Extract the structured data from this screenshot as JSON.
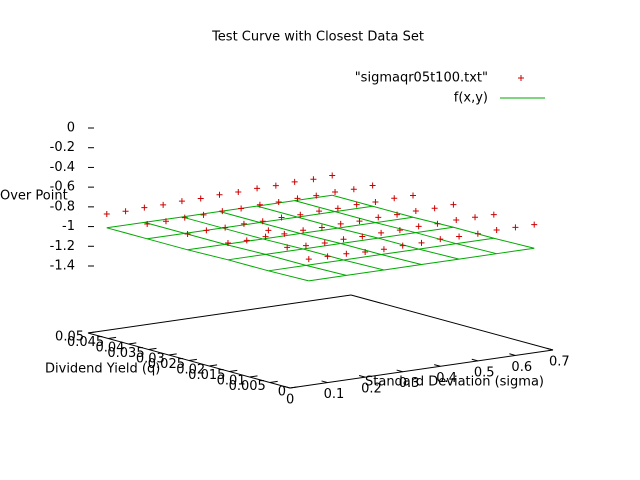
{
  "chart_data": {
    "type": "scatter3d",
    "title": "Test Curve with Closest Data Set",
    "xlabel": "Standard Deviation (sigma)",
    "ylabel": "Dividend Yield (q)",
    "zlabel": "Over Point",
    "xlim": [
      0,
      0.7
    ],
    "xticks": [
      0,
      0.1,
      0.2,
      0.3,
      0.4,
      0.5,
      0.6,
      0.7
    ],
    "ylim": [
      0,
      0.05
    ],
    "yticks": [
      0,
      0.005,
      0.01,
      0.015,
      0.02,
      0.025,
      0.03,
      0.035,
      0.04,
      0.045,
      0.05
    ],
    "zlim": [
      -1.4,
      0
    ],
    "zticks": [
      0,
      -0.2,
      -0.4,
      -0.6,
      -0.8,
      -1,
      -1.2,
      -1.4
    ],
    "series": [
      {
        "name": "\"sigmaqr05t100.txt\"",
        "color": "#cc0000",
        "style": "points",
        "x": [
          0.05,
          0.1,
          0.15,
          0.2,
          0.25,
          0.3,
          0.35,
          0.4,
          0.45,
          0.5,
          0.55,
          0.6,
          0.65
        ],
        "y": [
          0,
          0.01,
          0.02,
          0.03,
          0.04,
          0.05
        ],
        "values": [
          [
            -0.8,
            -0.8,
            -0.8,
            -0.81,
            -0.81,
            -0.8,
            -0.8,
            -0.79,
            -0.79,
            -0.79,
            -0.78,
            -0.78,
            -0.78
          ],
          [
            -0.62,
            -0.82,
            -0.83,
            -0.83,
            -0.82,
            -0.82,
            -0.81,
            -0.81,
            -0.8,
            -0.8,
            -0.79,
            -0.79,
            -0.79
          ],
          [
            -0.86,
            -0.86,
            -0.85,
            -0.85,
            -0.84,
            -0.84,
            -0.83,
            -0.83,
            -0.82,
            -0.82,
            -0.81,
            -0.81,
            -0.8
          ],
          [
            -0.88,
            -0.87,
            -0.87,
            -0.86,
            -0.86,
            -0.85,
            -0.85,
            -0.84,
            -0.84,
            -0.83,
            -0.83,
            -0.82,
            -0.82
          ],
          [
            -0.89,
            -0.89,
            -0.88,
            -0.88,
            -0.87,
            -0.87,
            -0.86,
            -0.86,
            -0.85,
            -0.85,
            -0.84,
            -0.84,
            -0.83
          ],
          [
            -0.9,
            -0.9,
            -0.89,
            -0.89,
            -0.88,
            -0.88,
            -0.87,
            -0.87,
            -0.86,
            -0.86,
            -0.85,
            -0.85,
            -0.84
          ]
        ]
      },
      {
        "name": "f(x,y)",
        "color": "#00aa00",
        "style": "mesh",
        "x": [
          0.05,
          0.15,
          0.25,
          0.35,
          0.45,
          0.55,
          0.65
        ],
        "y": [
          0,
          0.01,
          0.02,
          0.03,
          0.04,
          0.05
        ],
        "values": [
          [
            -1.02,
            -1.02,
            -1.02,
            -1.02,
            -1.02,
            -1.02,
            -1.02
          ],
          [
            -1.03,
            -1.03,
            -1.03,
            -1.03,
            -1.03,
            -1.03,
            -1.03
          ],
          [
            -1.03,
            -1.03,
            -1.03,
            -1.03,
            -1.03,
            -1.03,
            -1.03
          ],
          [
            -1.04,
            -1.04,
            -1.04,
            -1.04,
            -1.04,
            -1.04,
            -1.04
          ],
          [
            -1.04,
            -1.04,
            -1.04,
            -1.04,
            -1.04,
            -1.04,
            -1.04
          ],
          [
            -1.04,
            -1.04,
            -1.04,
            -1.04,
            -1.04,
            -1.04,
            -1.04
          ]
        ]
      }
    ]
  }
}
